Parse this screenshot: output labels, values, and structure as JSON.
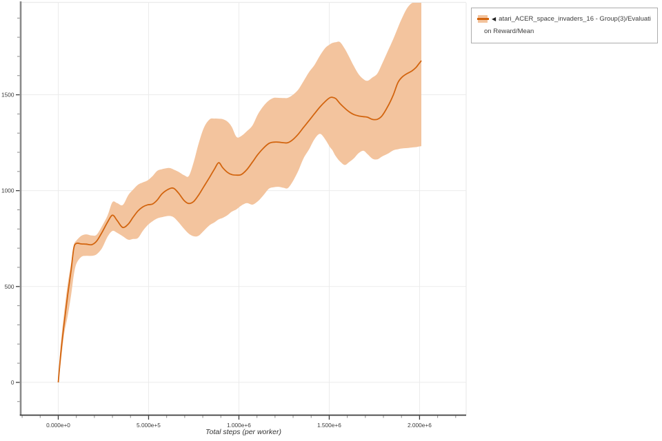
{
  "colors": {
    "grid": "#ebebeb",
    "axis_x": "#3a3a3a",
    "axis_y": "#8a8a8a",
    "tick_minor": "#888888",
    "tick_label": "#3a3a3a",
    "legend_border": "#ababab",
    "legend_text": "#3c3c3c"
  },
  "legend": {
    "marker": "◀",
    "label_line1": "atari_ACER_space_invaders_16 - Group(3)/Evaluati",
    "label_line2": "on Reward/Mean"
  },
  "chart_data": {
    "type": "line",
    "title": "",
    "xlabel": "Total steps (per worker)",
    "ylabel": "",
    "grid": true,
    "legend_position": "top-right",
    "x_axis": {
      "min": -208000,
      "max": 2258000,
      "minor_tick_step": 100000,
      "major_ticks": [
        {
          "value": 0,
          "label": "0.000e+0"
        },
        {
          "value": 500000,
          "label": "5.000e+5"
        },
        {
          "value": 1000000,
          "label": "1.000e+6"
        },
        {
          "value": 1500000,
          "label": "1.500e+6"
        },
        {
          "value": 2000000,
          "label": "2.000e+6"
        }
      ]
    },
    "y_axis": {
      "min": -171,
      "max": 1980,
      "minor_tick_step": 100,
      "major_ticks": [
        {
          "value": 0,
          "label": "0"
        },
        {
          "value": 500,
          "label": "500"
        },
        {
          "value": 1000,
          "label": "1000"
        },
        {
          "value": 1500,
          "label": "1500"
        }
      ]
    },
    "series": [
      {
        "name": "atari_ACER_space_invaders_16 - Group(3)/Evaluation Reward/Mean",
        "line_color": "#d2640e",
        "band_color": "#f3c49e",
        "x": [
          0,
          13000,
          32000,
          52000,
          71000,
          86000,
          101000,
          128000,
          155000,
          185000,
          212000,
          242000,
          273000,
          300000,
          326000,
          357000,
          388000,
          414000,
          441000,
          468000,
          494000,
          521000,
          548000,
          575000,
          613000,
          639000,
          666000,
          697000,
          723000,
          750000,
          777000,
          807000,
          838000,
          865000,
          888000,
          910000,
          937000,
          960000,
          987000,
          1013000,
          1044000,
          1075000,
          1105000,
          1135000,
          1166000,
          1193000,
          1220000,
          1247000,
          1270000,
          1296000,
          1327000,
          1357000,
          1388000,
          1418000,
          1449000,
          1479000,
          1502000,
          1517000,
          1536000,
          1559000,
          1586000,
          1609000,
          1636000,
          1662000,
          1689000,
          1712000,
          1739000,
          1766000,
          1792000,
          1823000,
          1854000,
          1880000,
          1903000,
          1930000,
          1957000,
          1980000,
          1995000,
          2010000
        ],
        "mean": [
          0,
          142,
          304,
          455,
          585,
          700,
          725,
          722,
          721,
          718,
          736,
          782,
          836,
          872,
          844,
          808,
          826,
          861,
          894,
          915,
          926,
          930,
          951,
          984,
          1009,
          1012,
          987,
          948,
          933,
          944,
          977,
          1023,
          1070,
          1113,
          1146,
          1120,
          1095,
          1084,
          1081,
          1084,
          1110,
          1149,
          1189,
          1221,
          1246,
          1253,
          1253,
          1250,
          1250,
          1264,
          1293,
          1329,
          1365,
          1401,
          1437,
          1466,
          1484,
          1487,
          1480,
          1455,
          1430,
          1412,
          1397,
          1390,
          1386,
          1383,
          1372,
          1372,
          1390,
          1437,
          1498,
          1563,
          1592,
          1610,
          1624,
          1642,
          1660,
          1678
        ],
        "band_lower": [
          0,
          95,
          250,
          345,
          455,
          560,
          620,
          655,
          660,
          660,
          668,
          700,
          760,
          790,
          780,
          762,
          744,
          748,
          753,
          790,
          819,
          840,
          855,
          862,
          868,
          861,
          835,
          800,
          775,
          762,
          765,
          792,
          820,
          835,
          850,
          858,
          872,
          890,
          903,
          922,
          935,
          927,
          945,
          975,
          1010,
          1018,
          1020,
          1015,
          1013,
          1045,
          1100,
          1167,
          1215,
          1268,
          1296,
          1266,
          1230,
          1212,
          1180,
          1153,
          1134,
          1148,
          1168,
          1195,
          1208,
          1190,
          1167,
          1163,
          1178,
          1192,
          1210,
          1216,
          1220,
          1222,
          1225,
          1227,
          1230,
          1232
        ],
        "band_upper": [
          0,
          190,
          360,
          510,
          620,
          715,
          740,
          765,
          772,
          766,
          770,
          815,
          870,
          940,
          935,
          925,
          977,
          1005,
          1031,
          1043,
          1053,
          1075,
          1103,
          1112,
          1118,
          1110,
          1098,
          1080,
          1077,
          1150,
          1245,
          1330,
          1372,
          1376,
          1375,
          1373,
          1360,
          1333,
          1280,
          1285,
          1310,
          1340,
          1398,
          1440,
          1470,
          1484,
          1484,
          1483,
          1484,
          1498,
          1525,
          1570,
          1618,
          1655,
          1705,
          1745,
          1762,
          1770,
          1774,
          1775,
          1740,
          1700,
          1650,
          1608,
          1582,
          1573,
          1590,
          1610,
          1660,
          1725,
          1790,
          1850,
          1900,
          1950,
          1978,
          1980,
          1980,
          1980
        ]
      }
    ]
  }
}
